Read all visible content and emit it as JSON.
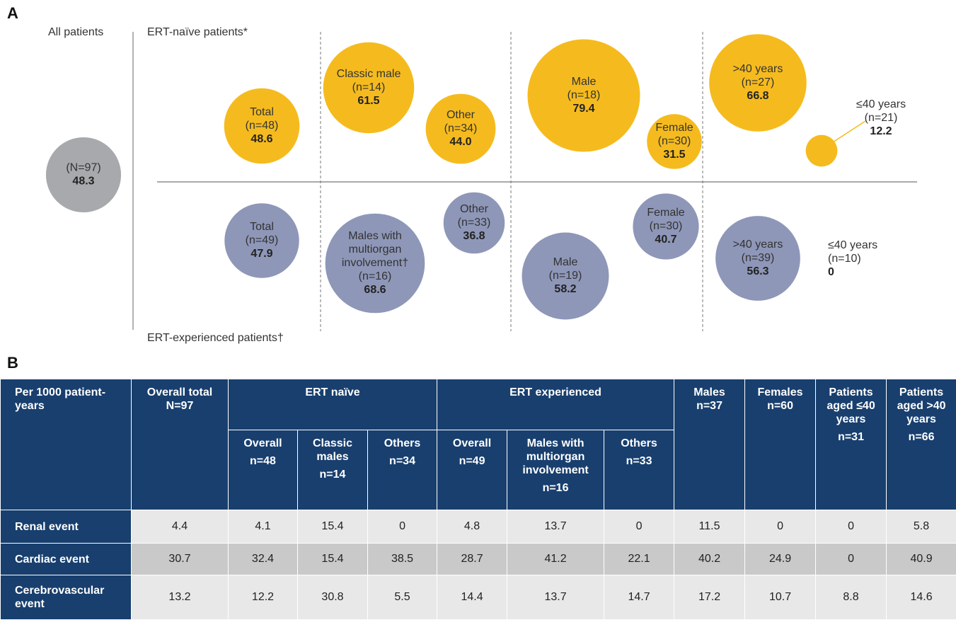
{
  "panel_a": {
    "letter": "A",
    "all_label": "All patients",
    "naive_label": "ERT-naïve patients*",
    "experienced_label": "ERT-experienced patients†",
    "colors": {
      "all": "#a7a9ac",
      "naive": "#f5bb1e",
      "experienced": "#8e97b8"
    },
    "all": {
      "n": "(N=97)",
      "value": 48.3
    },
    "naive": [
      {
        "label": [
          "Total"
        ],
        "n": "(n=48)",
        "value": 48.6
      },
      {
        "label": [
          "Classic male"
        ],
        "n": "(n=14)",
        "value": 61.5
      },
      {
        "label": [
          "Other"
        ],
        "n": "(n=34)",
        "value": 44.0,
        "value_label": "44.0"
      },
      {
        "label": [
          "Male"
        ],
        "n": "(n=18)",
        "value": 79.4
      },
      {
        "label": [
          "Female"
        ],
        "n": "(n=30)",
        "value": 31.5
      },
      {
        "label": [
          ">40 years"
        ],
        "n": "(n=27)",
        "value": 66.8
      },
      {
        "label": [
          "≤40 years"
        ],
        "n": "(n=21)",
        "value": 12.2
      }
    ],
    "experienced": [
      {
        "label": [
          "Total"
        ],
        "n": "(n=49)",
        "value": 47.9
      },
      {
        "label": [
          "Males with",
          "multiorgan",
          "involvement†"
        ],
        "n": "(n=16)",
        "value": 68.6
      },
      {
        "label": [
          "Other"
        ],
        "n": "(n=33)",
        "value": 36.8
      },
      {
        "label": [
          "Male"
        ],
        "n": "(n=19)",
        "value": 58.2
      },
      {
        "label": [
          "Female"
        ],
        "n": "(n=30)",
        "value": 40.7
      },
      {
        "label": [
          ">40 years"
        ],
        "n": "(n=39)",
        "value": 56.3
      },
      {
        "label": [
          "≤40 years"
        ],
        "n": "(n=10)",
        "value": 0
      }
    ]
  },
  "panel_b": {
    "letter": "B",
    "table": {
      "header": [
        {
          "label": "Per 1000 patient-years"
        },
        {
          "label": "Overall total",
          "n": "N=97"
        },
        {
          "label": "ERT naïve"
        },
        {
          "label": "ERT experienced"
        },
        {
          "label": "Males",
          "n": "n=37"
        },
        {
          "label": "Females",
          "n": "n=60"
        },
        {
          "label": "Patients aged ≤40 years",
          "n": "n=31"
        },
        {
          "label": "Patients aged >40 years",
          "n": "n=66"
        }
      ],
      "subheader": [
        {
          "label": "Overall",
          "n": "n=48"
        },
        {
          "label": "Classic males",
          "n": "n=14"
        },
        {
          "label": "Others",
          "n": "n=34"
        },
        {
          "label": "Overall",
          "n": "n=49"
        },
        {
          "label": "Males with multiorgan involvement",
          "n": "n=16"
        },
        {
          "label": "Others",
          "n": "n=33"
        }
      ],
      "rows": [
        {
          "label": "Renal event",
          "values": [
            4.4,
            4.1,
            15.4,
            0,
            4.8,
            13.7,
            0,
            11.5,
            0,
            0,
            5.8
          ]
        },
        {
          "label": "Cardiac event",
          "values": [
            30.7,
            32.4,
            15.4,
            38.5,
            28.7,
            41.2,
            22.1,
            40.2,
            24.9,
            0,
            40.9
          ]
        },
        {
          "label": "Cerebrovascular event",
          "values": [
            13.2,
            12.2,
            30.8,
            5.5,
            14.4,
            13.7,
            14.7,
            17.2,
            10.7,
            8.8,
            14.6
          ]
        }
      ]
    }
  }
}
